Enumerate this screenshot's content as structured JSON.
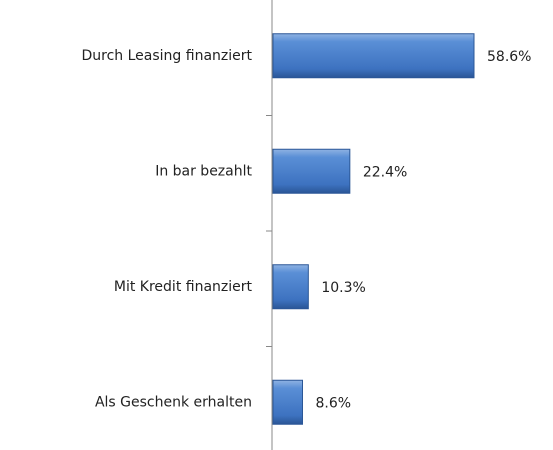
{
  "chart_data": {
    "type": "bar",
    "orientation": "horizontal",
    "categories": [
      "Durch Leasing finanziert",
      "In bar bezahlt",
      "Mit Kredit finanziert",
      "Als Geschenk erhalten"
    ],
    "values": [
      58.6,
      22.4,
      10.3,
      8.6
    ],
    "value_labels": [
      "58.6%",
      "22.4%",
      "10.3%",
      "8.6%"
    ],
    "color": "#4a7ebb"
  }
}
